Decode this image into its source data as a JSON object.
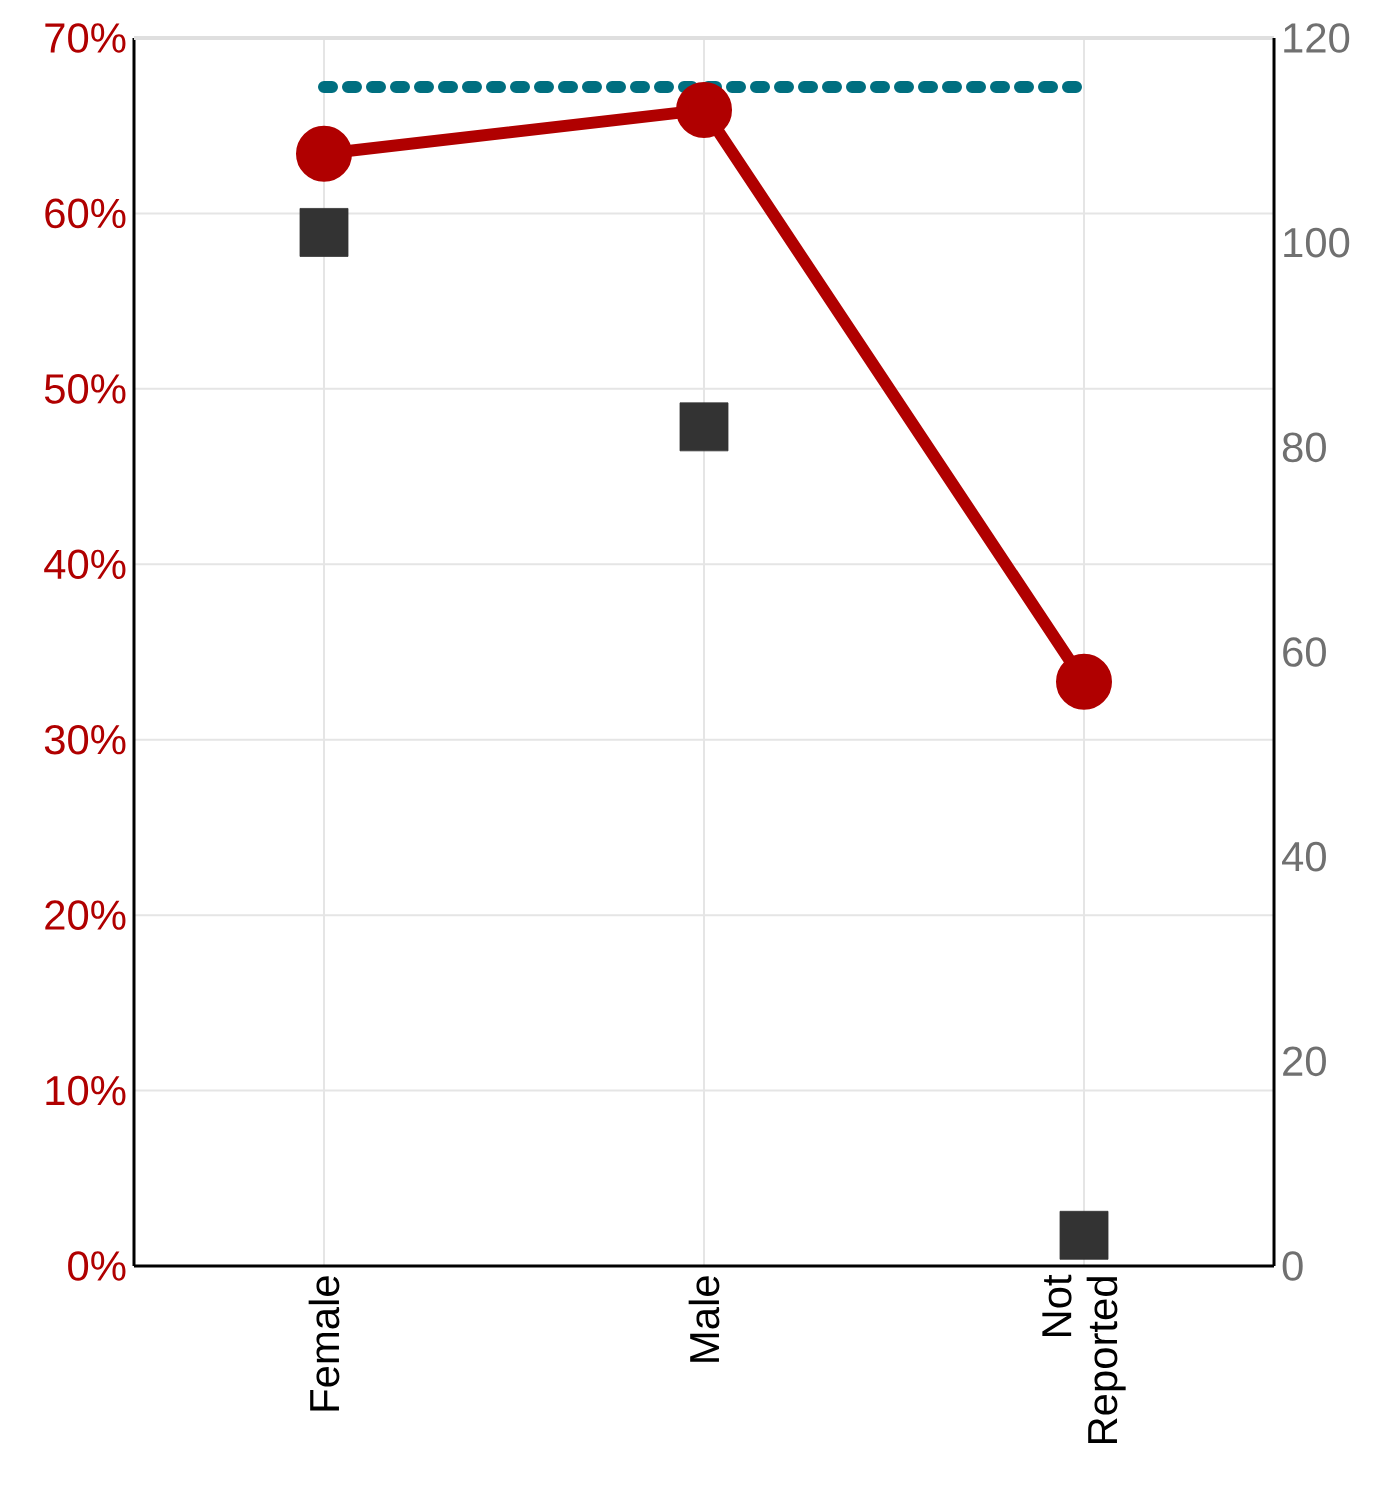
{
  "chart_data": {
    "type": "line",
    "categories": [
      "Female",
      "Male",
      "Not Reported"
    ],
    "series": [
      {
        "color": "#b00000",
        "values": [
          63.4,
          65.9,
          33.3
        ],
        "marker": "circle",
        "line_style": "solid"
      },
      {
        "color": "#006f80",
        "values": [
          67.2,
          67.2,
          67.2
        ],
        "marker": "none",
        "line_style": "dotted"
      },
      {
        "type": "scatter",
        "color": "#333333",
        "values": [
          101,
          82,
          3
        ],
        "marker": "square",
        "axis": "y2"
      }
    ],
    "ylim": [
      0,
      70
    ],
    "yticks": [
      {
        "value": 0,
        "label": "0%"
      },
      {
        "value": 10,
        "label": "10%"
      },
      {
        "value": 20,
        "label": "20%"
      },
      {
        "value": 30,
        "label": "30%"
      },
      {
        "value": 40,
        "label": "40%"
      },
      {
        "value": 50,
        "label": "50%"
      },
      {
        "value": 60,
        "label": "60%"
      },
      {
        "value": 70,
        "label": "70%"
      }
    ],
    "y2lim": [
      0,
      120
    ],
    "y2ticks": [
      0,
      20,
      40,
      60,
      80,
      100,
      120
    ],
    "grid": true
  }
}
